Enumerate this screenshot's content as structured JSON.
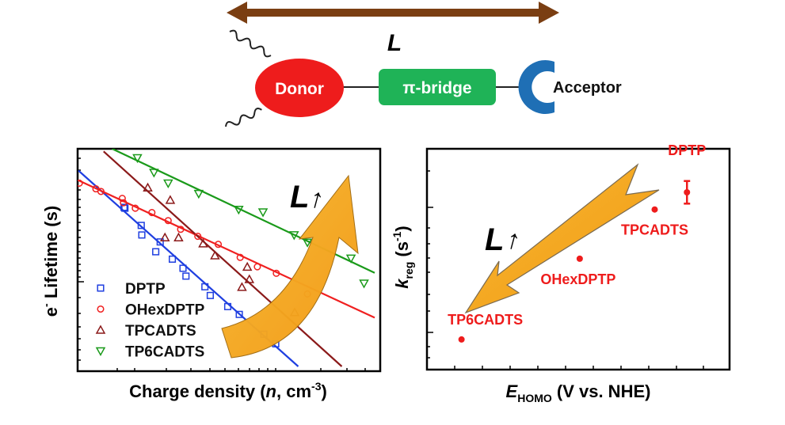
{
  "diagram": {
    "length_label": "L",
    "donor": "Donor",
    "bridge": "π-bridge",
    "acceptor": "Acceptor",
    "colors": {
      "arrow": "#7a3e12",
      "donor": "#ee1c1c",
      "bridge": "#1fb357",
      "acceptor": "#1f6fb5"
    }
  },
  "chart_data": [
    {
      "type": "scatter",
      "title": "",
      "ylabel_main": "e",
      "ylabel_sup": "-",
      "ylabel_rest": " Lifetime (s)",
      "xlabel_main": "Charge density (",
      "xlabel_var": "n",
      "xlabel_unit": ", cm",
      "xlabel_sup": "-3",
      "xlabel_end": ")",
      "xscale": "log",
      "yscale": "log",
      "units_note": "relative axis units (0-100), no tick labels shown",
      "xlim": [
        0,
        100
      ],
      "ylim": [
        0,
        100
      ],
      "annotation": {
        "main": "L",
        "arrow": "↑"
      },
      "legend_position": "bottom-left",
      "series": [
        {
          "name": "DPTP",
          "marker": "square",
          "color": "#1f3fe0",
          "x": [
            15.4,
            15.7,
            21.2,
            21.4,
            27.6,
            26.1,
            31.7,
            35.3,
            36.3,
            42.7,
            44.5,
            50.4,
            54.3,
            62.6,
            66.6
          ],
          "y": [
            73.1,
            72.7,
            64.8,
            60.4,
            57.2,
            52.7,
            49.3,
            45.1,
            41.5,
            36.6,
            32.6,
            27.5,
            23.9,
            14.8,
            10.4
          ],
          "fit": [
            [
              0,
              90
            ],
            [
              74.2,
              0
            ]
          ]
        },
        {
          "name": "OHexDPTP",
          "marker": "circle",
          "color": "#f02020",
          "x": [
            0.3,
            5.9,
            7.6,
            14.8,
            15.2,
            19.2,
            24.8,
            30.3,
            34.5,
            40.3,
            47.2,
            54.6,
            60.4,
            66.8,
            77.3
          ],
          "y": [
            84.2,
            81.6,
            80.4,
            77.2,
            75.2,
            72.7,
            70.7,
            67.0,
            63.0,
            59.8,
            56.1,
            50.1,
            45.8,
            42.8,
            33.3
          ],
          "fit": [
            [
              0,
              85.5
            ],
            [
              100,
              22.4
            ]
          ]
        },
        {
          "name": "TPCADTS",
          "marker": "triangle-up",
          "color": "#8b1a1a",
          "x": [
            23.4,
            31.0,
            29.2,
            33.8,
            42.1,
            46.1,
            57.0,
            57.7,
            55.2,
            73.0
          ],
          "y": [
            82.1,
            76.4,
            59.2,
            59.2,
            56.4,
            50.9,
            45.7,
            40.0,
            36.4,
            24.8
          ],
          "fit": [
            [
              8.5,
              98.8
            ],
            [
              88.9,
              0
            ]
          ]
        },
        {
          "name": "TP6CADTS",
          "marker": "triangle-down",
          "color": "#1a9a1a",
          "x": [
            19.9,
            25.5,
            30.3,
            40.6,
            54.1,
            62.3,
            72.8,
            77.3,
            92.0,
            96.4
          ],
          "y": [
            95.8,
            89.1,
            84.2,
            79.4,
            72.1,
            70.9,
            60.4,
            57.0,
            49.7,
            38.2
          ],
          "fit": [
            [
              11.4,
              100
            ],
            [
              100,
              43
            ]
          ]
        }
      ]
    },
    {
      "type": "scatter",
      "title": "",
      "ylabel_main": "k",
      "ylabel_sub": "reg",
      "ylabel_rest": " (s",
      "ylabel_sup": "-1",
      "ylabel_end": ")",
      "xlabel_main": "E",
      "xlabel_sub": "HOMO",
      "xlabel_rest": " (V vs. NHE)",
      "yscale": "log",
      "units_note": "relative axis units (0-100), no tick labels shown",
      "xlim": [
        0,
        100
      ],
      "ylim": [
        0,
        100
      ],
      "annotation": {
        "main": "L",
        "arrow": "↑"
      },
      "color": "#ee1c1c",
      "points": [
        {
          "label": "DPTP",
          "x": 87.5,
          "y": 80.0,
          "err": 5.2
        },
        {
          "label": "TPCADTS",
          "x": 76.6,
          "y": 72.1
        },
        {
          "label": "OHexDPTP",
          "x": 51.3,
          "y": 49.5
        },
        {
          "label": "TP6CADTS",
          "x": 11.4,
          "y": 12.4
        }
      ]
    }
  ]
}
